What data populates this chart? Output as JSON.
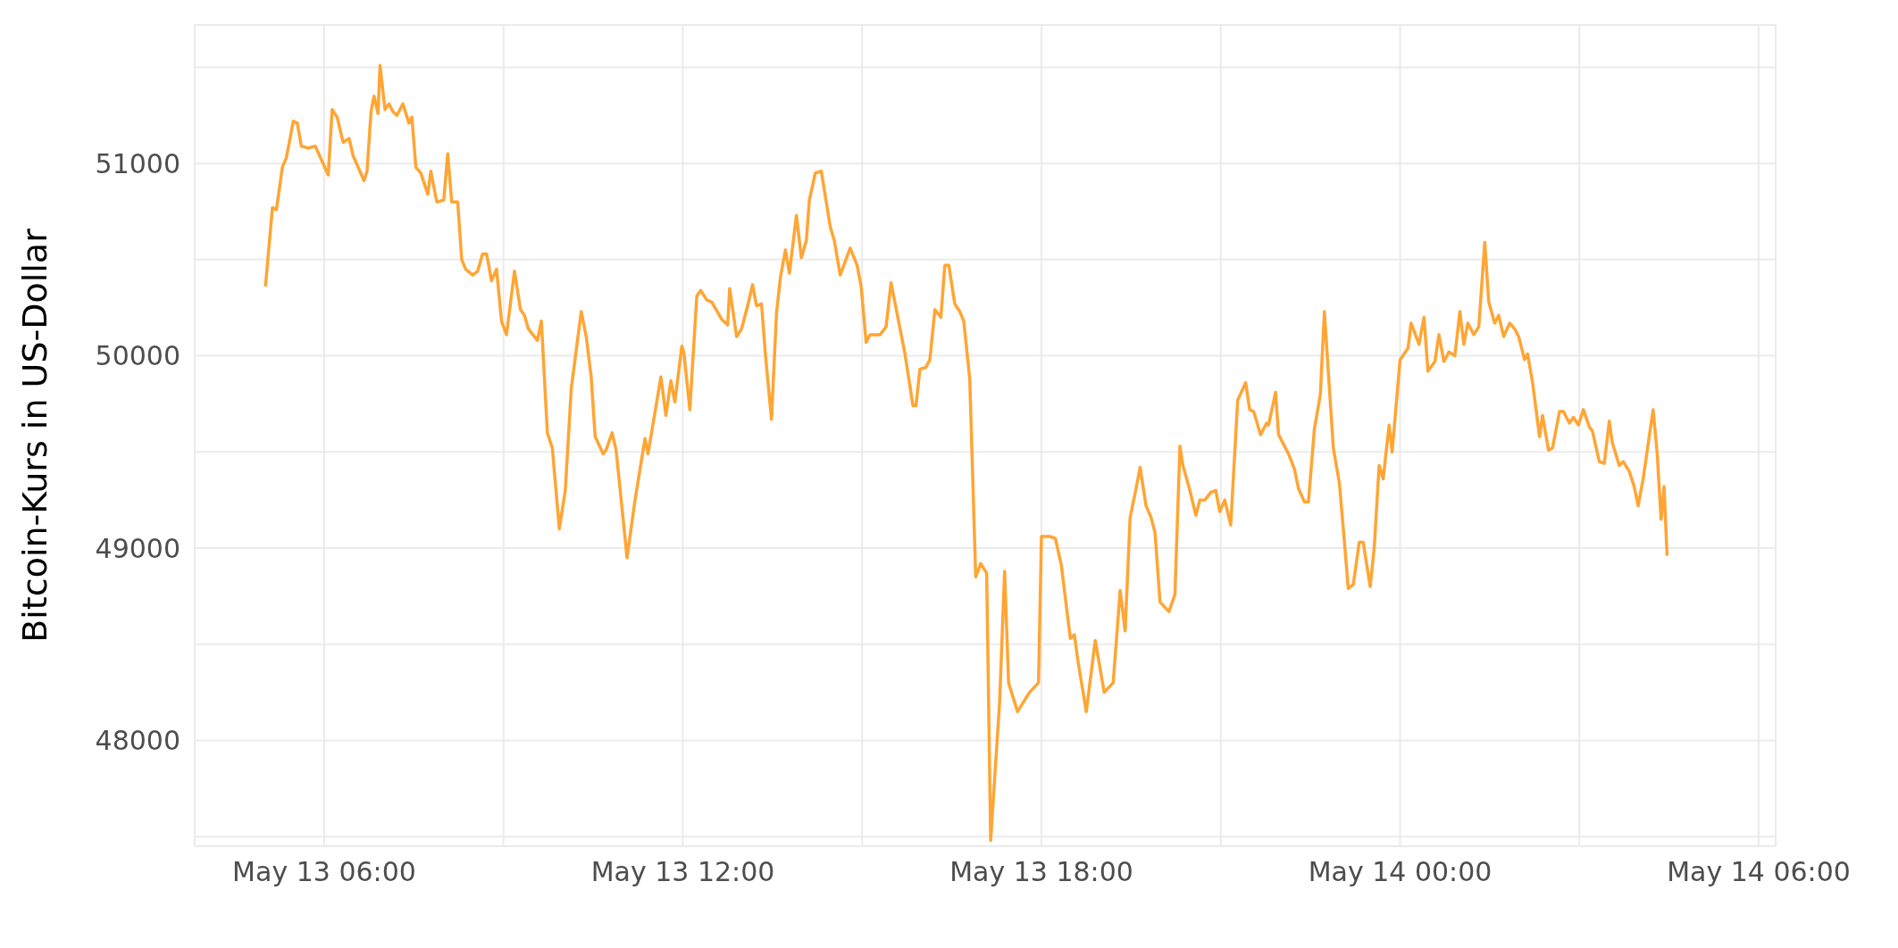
{
  "chart_data": {
    "type": "line",
    "ylabel": "Bitcoin-Kurs in US-Dollar",
    "color": "#ffa534",
    "grid": true,
    "xlim": [
      "--05-13T03:50",
      "--05-14T06:17"
    ],
    "xticks": [
      {
        "value": "--05-13T06:00",
        "label": "May 13 06:00"
      },
      {
        "value": "--05-13T09:00",
        "label": null
      },
      {
        "value": "--05-13T12:00",
        "label": "May 13 12:00"
      },
      {
        "value": "--05-13T15:00",
        "label": null
      },
      {
        "value": "--05-13T18:00",
        "label": "May 13 18:00"
      },
      {
        "value": "--05-13T21:00",
        "label": null
      },
      {
        "value": "--05-14T00:00",
        "label": "May 14 00:00"
      },
      {
        "value": "--05-14T03:00",
        "label": null
      },
      {
        "value": "--05-14T06:00",
        "label": "May 14 06:00"
      }
    ],
    "ylim": [
      47450,
      51720
    ],
    "yticks": [
      {
        "value": 47500,
        "label": null
      },
      48000,
      {
        "value": 48500,
        "label": null
      },
      49000,
      {
        "value": 49500,
        "label": null
      },
      50000,
      {
        "value": 50500,
        "label": null
      },
      51000,
      {
        "value": 51500,
        "label": null
      }
    ],
    "x": [
      "--05-13T05:01",
      "--05-13T05:08",
      "--05-13T05:12",
      "--05-13T05:18",
      "--05-13T05:22",
      "--05-13T05:29",
      "--05-13T05:33",
      "--05-13T05:37",
      "--05-13T05:44",
      "--05-13T05:51",
      "--05-13T05:58",
      "--05-13T06:04",
      "--05-13T06:08",
      "--05-13T06:13",
      "--05-13T06:19",
      "--05-13T06:25",
      "--05-13T06:29",
      "--05-13T06:40",
      "--05-13T06:43",
      "--05-13T06:47",
      "--05-13T06:50",
      "--05-13T06:54",
      "--05-13T06:56",
      "--05-13T07:01",
      "--05-13T07:05",
      "--05-13T07:09",
      "--05-13T07:13",
      "--05-13T07:19",
      "--05-13T07:25",
      "--05-13T07:28",
      "--05-13T07:32",
      "--05-13T07:37",
      "--05-13T07:44",
      "--05-13T07:47",
      "--05-13T07:53",
      "--05-13T08:00",
      "--05-13T08:04",
      "--05-13T08:08",
      "--05-13T08:14",
      "--05-13T08:18",
      "--05-13T08:22",
      "--05-13T08:29",
      "--05-13T08:34",
      "--05-13T08:39",
      "--05-13T08:43",
      "--05-13T08:48",
      "--05-13T08:53",
      "--05-13T08:58",
      "--05-13T09:03",
      "--05-13T09:11",
      "--05-13T09:17",
      "--05-13T09:21",
      "--05-13T09:25",
      "--05-13T09:34",
      "--05-13T09:38",
      "--05-13T09:44",
      "--05-13T09:49",
      "--05-13T09:56",
      "--05-13T10:02",
      "--05-13T10:08",
      "--05-13T10:18",
      "--05-13T10:23",
      "--05-13T10:28",
      "--05-13T10:32",
      "--05-13T10:40",
      "--05-13T10:43",
      "--05-13T10:49",
      "--05-13T10:53",
      "--05-13T11:04",
      "--05-13T11:12",
      "--05-13T11:22",
      "--05-13T11:25",
      "--05-13T11:38",
      "--05-13T11:43",
      "--05-13T11:48",
      "--05-13T11:52",
      "--05-13T11:59",
      "--05-13T12:01",
      "--05-13T12:07",
      "--05-13T12:14",
      "--05-13T12:18",
      "--05-13T12:24",
      "--05-13T12:29",
      "--05-13T12:39",
      "--05-13T12:45",
      "--05-13T12:47",
      "--05-13T12:54",
      "--05-13T12:59",
      "--05-13T13:06",
      "--05-13T13:10",
      "--05-13T13:14",
      "--05-13T13:19",
      "--05-13T13:23",
      "--05-13T13:29",
      "--05-13T13:34",
      "--05-13T13:38",
      "--05-13T13:43",
      "--05-13T13:47",
      "--05-13T13:54",
      "--05-13T13:59",
      "--05-13T14:04",
      "--05-13T14:07",
      "--05-13T14:13",
      "--05-13T14:19",
      "--05-13T14:28",
      "--05-13T14:32",
      "--05-13T14:38",
      "--05-13T14:48",
      "--05-13T14:55",
      "--05-13T14:59",
      "--05-13T15:04",
      "--05-13T15:08",
      "--05-13T15:18",
      "--05-13T15:24",
      "--05-13T15:29",
      "--05-13T15:43",
      "--05-13T15:51",
      "--05-13T15:54",
      "--05-13T15:58",
      "--05-13T16:04",
      "--05-13T16:08",
      "--05-13T16:13",
      "--05-13T16:19",
      "--05-13T16:23",
      "--05-13T16:27",
      "--05-13T16:33",
      "--05-13T16:38",
      "--05-13T16:42",
      "--05-13T16:48",
      "--05-13T16:54",
      "--05-13T16:59",
      "--05-13T17:05",
      "--05-13T17:09",
      "--05-13T17:18",
      "--05-13T17:23",
      "--05-13T17:27",
      "--05-13T17:36",
      "--05-13T17:48",
      "--05-13T17:57",
      "--05-13T18:00",
      "--05-13T18:09",
      "--05-13T18:14",
      "--05-13T18:20",
      "--05-13T18:29",
      "--05-13T18:33",
      "--05-13T18:37",
      "--05-13T18:45",
      "--05-13T18:54",
      "--05-13T19:03",
      "--05-13T19:12",
      "--05-13T19:19",
      "--05-13T19:24",
      "--05-13T19:29",
      "--05-13T19:35",
      "--05-13T19:39",
      "--05-13T19:45",
      "--05-13T19:50",
      "--05-13T19:54",
      "--05-13T19:59",
      "--05-13T20:08",
      "--05-13T20:14",
      "--05-13T20:19",
      "--05-13T20:22",
      "--05-13T20:29",
      "--05-13T20:35",
      "--05-13T20:39",
      "--05-13T20:44",
      "--05-13T20:50",
      "--05-13T20:55",
      "--05-13T20:59",
      "--05-13T21:04",
      "--05-13T21:10",
      "--05-13T21:17",
      "--05-13T21:25",
      "--05-13T21:29",
      "--05-13T21:33",
      "--05-13T21:40",
      "--05-13T21:46",
      "--05-13T21:48",
      "--05-13T21:55",
      "--05-13T21:58",
      "--05-13T22:04",
      "--05-13T22:08",
      "--05-13T22:14",
      "--05-13T22:18",
      "--05-13T22:24",
      "--05-13T22:28",
      "--05-13T22:34",
      "--05-13T22:40",
      "--05-13T22:44",
      "--05-13T22:53",
      "--05-13T22:59",
      "--05-13T23:04",
      "--05-13T23:08",
      "--05-13T23:13",
      "--05-13T23:19",
      "--05-13T23:23",
      "--05-13T23:30",
      "--05-13T23:34",
      "--05-13T23:39",
      "--05-13T23:43",
      "--05-13T23:49",
      "--05-13T23:52",
      "--05-14T00:00",
      "--05-14T00:08",
      "--05-14T00:11",
      "--05-14T00:19",
      "--05-14T00:24",
      "--05-14T00:28",
      "--05-14T00:35",
      "--05-14T00:39",
      "--05-14T00:44",
      "--05-14T00:49",
      "--05-14T00:55",
      "--05-14T01:00",
      "--05-14T01:04",
      "--05-14T01:08",
      "--05-14T01:14",
      "--05-14T01:19",
      "--05-14T01:25",
      "--05-14T01:29",
      "--05-14T01:35",
      "--05-14T01:39",
      "--05-14T01:44",
      "--05-14T01:50",
      "--05-14T01:55",
      "--05-14T01:59",
      "--05-14T02:05",
      "--05-14T02:08",
      "--05-14T02:13",
      "--05-14T02:20",
      "--05-14T02:23",
      "--05-14T02:29",
      "--05-14T02:33",
      "--05-14T02:40",
      "--05-14T02:44",
      "--05-14T02:50",
      "--05-14T02:54",
      "--05-14T02:59",
      "--05-14T03:04",
      "--05-14T03:10",
      "--05-14T03:13",
      "--05-14T03:20",
      "--05-14T03:25",
      "--05-14T03:30",
      "--05-14T03:33",
      "--05-14T03:40",
      "--05-14T03:44",
      "--05-14T03:50",
      "--05-14T03:55",
      "--05-14T03:59",
      "--05-14T04:04",
      "--05-14T04:09",
      "--05-14T04:14",
      "--05-14T04:18",
      "--05-14T04:22",
      "--05-14T04:25",
      "--05-14T04:28"
    ],
    "values": [
      50360,
      50770,
      50760,
      50980,
      51030,
      51220,
      51210,
      51090,
      51080,
      51090,
      51010,
      50940,
      51280,
      51240,
      51110,
      51130,
      51040,
      50910,
      50960,
      51270,
      51350,
      51260,
      51510,
      51280,
      51310,
      51270,
      51250,
      51310,
      51210,
      51240,
      50980,
      50950,
      50840,
      50960,
      50800,
      50810,
      51050,
      50800,
      50800,
      50500,
      50450,
      50420,
      50440,
      50530,
      50530,
      50390,
      50450,
      50180,
      50110,
      50440,
      50240,
      50210,
      50140,
      50080,
      50180,
      49600,
      49520,
      49100,
      49300,
      49830,
      50230,
      50100,
      49890,
      49580,
      49490,
      49510,
      49600,
      49510,
      48950,
      49250,
      49570,
      49490,
      49890,
      49690,
      49870,
      49760,
      50050,
      50020,
      49720,
      50310,
      50340,
      50290,
      50280,
      50190,
      50160,
      50350,
      50100,
      50140,
      50280,
      50370,
      50260,
      50270,
      50000,
      49670,
      50220,
      50410,
      50550,
      50430,
      50730,
      50510,
      50600,
      50810,
      50950,
      50960,
      50670,
      50600,
      50420,
      50560,
      50470,
      50360,
      50070,
      50110,
      50110,
      50150,
      50380,
      50010,
      49740,
      49740,
      49930,
      49940,
      49980,
      50240,
      50200,
      50470,
      50470,
      50270,
      50230,
      50180,
      49880,
      48850,
      48920,
      48870,
      47480,
      48200,
      48880,
      48300,
      48150,
      48250,
      48300,
      49060,
      49060,
      49050,
      48910,
      48530,
      48550,
      48400,
      48150,
      48520,
      48250,
      48300,
      48780,
      48570,
      49160,
      49310,
      49420,
      49220,
      49160,
      49080,
      48720,
      48670,
      48760,
      49530,
      49430,
      49300,
      49170,
      49250,
      49250,
      49290,
      49300,
      49190,
      49250,
      49120,
      49770,
      49860,
      49720,
      49710,
      49590,
      49650,
      49640,
      49810,
      49590,
      49530,
      49490,
      49410,
      49310,
      49240,
      49240,
      49620,
      49800,
      50230,
      49520,
      49340,
      49040,
      48790,
      48810,
      49030,
      49030,
      48800,
      49000,
      49430,
      49360,
      49640,
      49500,
      49980,
      50040,
      50170,
      50060,
      50200,
      49920,
      49970,
      50110,
      49970,
      50020,
      50000,
      50230,
      50060,
      50170,
      50110,
      50150,
      50590,
      50280,
      50170,
      50210,
      50100,
      50170,
      50140,
      50100,
      49980,
      50010,
      49860,
      49580,
      49690,
      49510,
      49520,
      49710,
      49710,
      49650,
      49680,
      49640,
      49720,
      49630,
      49610,
      49450,
      49440,
      49660,
      49550,
      49430,
      49450,
      49400,
      49320,
      49220,
      49360,
      49540,
      49720,
      49500,
      49150,
      49320,
      48960
    ]
  }
}
